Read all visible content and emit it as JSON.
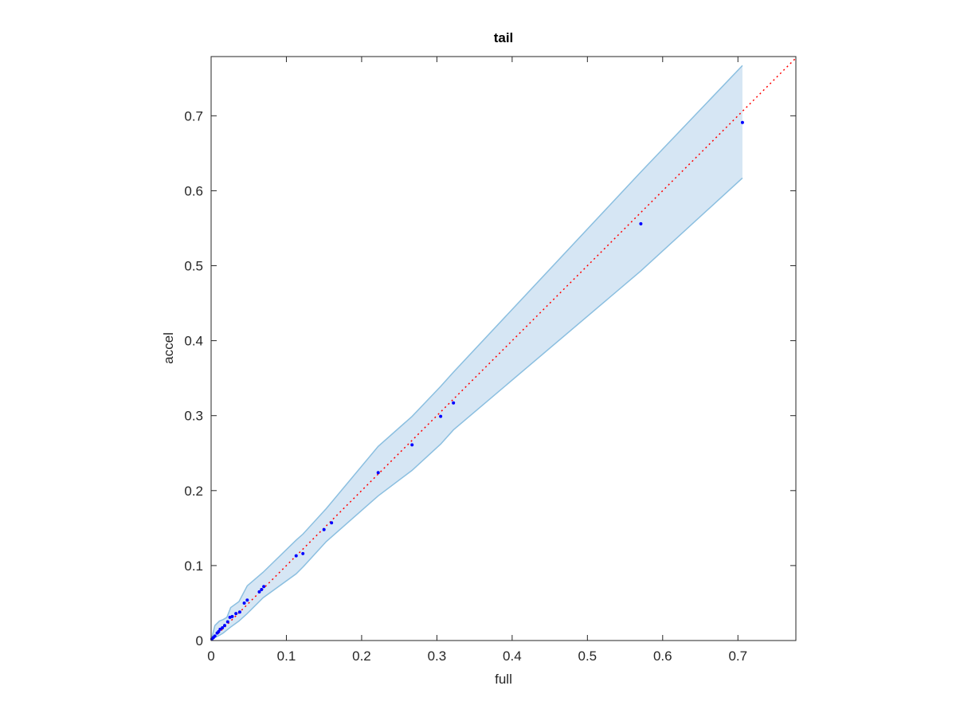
{
  "chart_data": {
    "type": "scatter",
    "title": "tail",
    "xlabel": "full",
    "ylabel": "accel",
    "xlim": [
      0,
      0.777
    ],
    "ylim": [
      0,
      0.779
    ],
    "xticks": [
      0,
      0.1,
      0.2,
      0.3,
      0.4,
      0.5,
      0.6,
      0.7
    ],
    "yticks": [
      0,
      0.1,
      0.2,
      0.3,
      0.4,
      0.5,
      0.6,
      0.7
    ],
    "box": true,
    "series": [
      {
        "color": "#0000ff",
        "x": [
          0.706,
          0.571,
          0.322,
          0.305,
          0.267,
          0.222,
          0.16,
          0.15,
          0.122,
          0.113,
          0.07,
          0.067,
          0.064,
          0.048,
          0.044,
          0.038,
          0.033,
          0.028,
          0.025,
          0.022,
          0.018,
          0.015,
          0.012,
          0.01,
          0.008,
          0.005,
          0.003,
          0.001
        ],
        "values": [
          0.691,
          0.556,
          0.317,
          0.299,
          0.261,
          0.224,
          0.157,
          0.148,
          0.116,
          0.113,
          0.072,
          0.068,
          0.065,
          0.054,
          0.05,
          0.038,
          0.036,
          0.032,
          0.031,
          0.025,
          0.02,
          0.017,
          0.015,
          0.012,
          0.01,
          0.006,
          0.004,
          0.002
        ]
      }
    ],
    "band": {
      "fill": "#d6e6f4",
      "stroke": "#8bbfe0",
      "x": [
        0,
        0.005,
        0.011,
        0.016,
        0.021,
        0.026,
        0.037,
        0.048,
        0.069,
        0.113,
        0.122,
        0.153,
        0.222,
        0.267,
        0.305,
        0.322,
        0.571,
        0.706
      ],
      "upper": [
        0,
        0.02,
        0.026,
        0.028,
        0.031,
        0.044,
        0.052,
        0.073,
        0.091,
        0.134,
        0.142,
        0.176,
        0.259,
        0.299,
        0.339,
        0.358,
        0.625,
        0.767
      ],
      "lower": [
        0,
        0.004,
        0.007,
        0.01,
        0.014,
        0.018,
        0.026,
        0.036,
        0.057,
        0.089,
        0.098,
        0.132,
        0.193,
        0.227,
        0.262,
        0.281,
        0.493,
        0.617
      ]
    },
    "reference_line": {
      "color": "#ff0000",
      "dash": "2 4"
    }
  }
}
